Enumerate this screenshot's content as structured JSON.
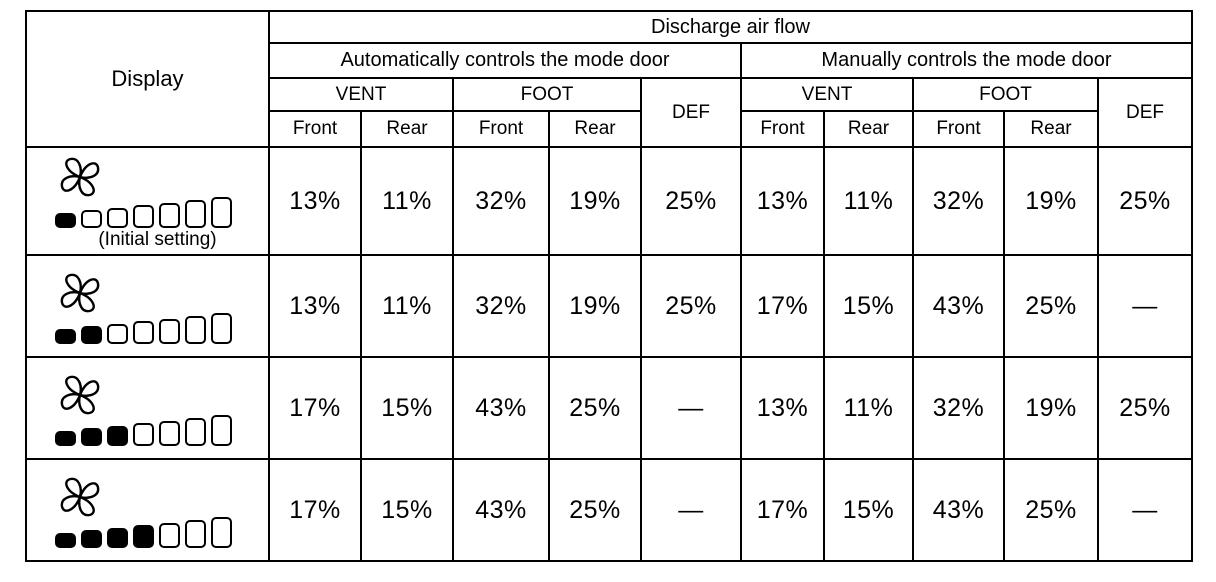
{
  "page": {
    "background": "#ffffff",
    "border_color": "#000000",
    "text_color": "#000000",
    "segment_fill_color": "#000000"
  },
  "table": {
    "headers": {
      "display": "Display",
      "discharge": "Discharge air flow",
      "auto_group": "Automatically controls the mode door",
      "manual_group": "Manually controls the mode door",
      "vent": "VENT",
      "foot": "FOOT",
      "def": "DEF",
      "front": "Front",
      "rear": "Rear"
    },
    "rows": [
      {
        "display": {
          "icon": "fan-icon",
          "fan_level": 1,
          "segments_total": 7,
          "caption": "(Initial setting)"
        },
        "auto": {
          "vent_front": "13%",
          "vent_rear": "11%",
          "foot_front": "32%",
          "foot_rear": "19%",
          "def": "25%"
        },
        "manual": {
          "vent_front": "13%",
          "vent_rear": "11%",
          "foot_front": "32%",
          "foot_rear": "19%",
          "def": "25%"
        }
      },
      {
        "display": {
          "icon": "fan-icon",
          "fan_level": 2,
          "segments_total": 7
        },
        "auto": {
          "vent_front": "13%",
          "vent_rear": "11%",
          "foot_front": "32%",
          "foot_rear": "19%",
          "def": "25%"
        },
        "manual": {
          "vent_front": "17%",
          "vent_rear": "15%",
          "foot_front": "43%",
          "foot_rear": "25%",
          "def": "—"
        }
      },
      {
        "display": {
          "icon": "fan-icon",
          "fan_level": 3,
          "segments_total": 7
        },
        "auto": {
          "vent_front": "17%",
          "vent_rear": "15%",
          "foot_front": "43%",
          "foot_rear": "25%",
          "def": "—"
        },
        "manual": {
          "vent_front": "13%",
          "vent_rear": "11%",
          "foot_front": "32%",
          "foot_rear": "19%",
          "def": "25%"
        }
      },
      {
        "display": {
          "icon": "fan-icon",
          "fan_level": 4,
          "segments_total": 7
        },
        "auto": {
          "vent_front": "17%",
          "vent_rear": "15%",
          "foot_front": "43%",
          "foot_rear": "25%",
          "def": "—"
        },
        "manual": {
          "vent_front": "17%",
          "vent_rear": "15%",
          "foot_front": "43%",
          "foot_rear": "25%",
          "def": "—"
        }
      }
    ]
  }
}
